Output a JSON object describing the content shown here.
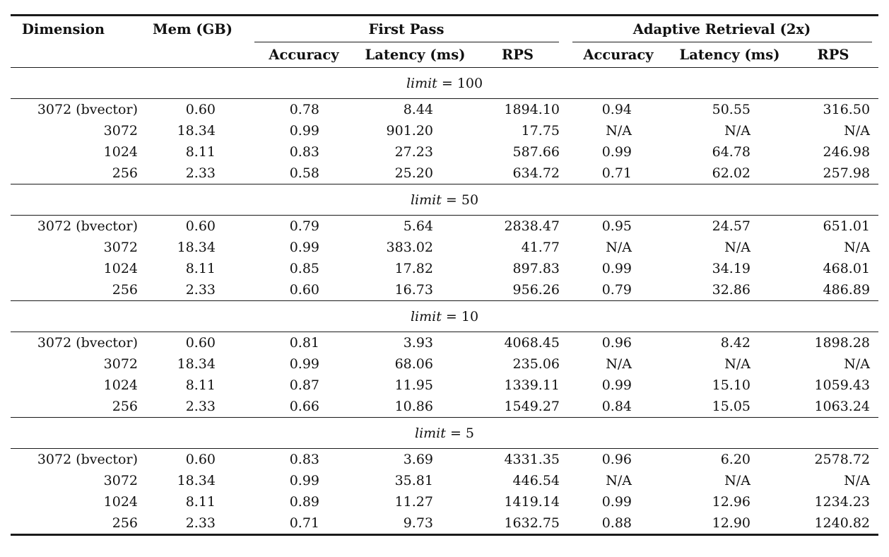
{
  "page": {
    "background": "#ffffff",
    "text_color": "#111111",
    "rule_color": "#1a1a1a"
  },
  "table": {
    "headers": {
      "dimension": "Dimension",
      "mem": "Mem (GB)",
      "first_pass": "First Pass",
      "adaptive": "Adaptive Retrieval (2x)",
      "sub_headers": [
        "Accuracy",
        "Latency (ms)",
        "RPS",
        "Accuracy",
        "Latency (ms)",
        "RPS"
      ]
    },
    "section_label_separator": " = ",
    "sections": [
      {
        "limit_var": "limit",
        "limit_value": "100",
        "rows": [
          [
            "3072 (bvector)",
            "0.60",
            "0.78",
            "8.44",
            "1894.10",
            "0.94",
            "50.55",
            "316.50"
          ],
          [
            "3072",
            "18.34",
            "0.99",
            "901.20",
            "17.75",
            "N/A",
            "N/A",
            "N/A"
          ],
          [
            "1024",
            "8.11",
            "0.83",
            "27.23",
            "587.66",
            "0.99",
            "64.78",
            "246.98"
          ],
          [
            "256",
            "2.33",
            "0.58",
            "25.20",
            "634.72",
            "0.71",
            "62.02",
            "257.98"
          ]
        ]
      },
      {
        "limit_var": "limit",
        "limit_value": "50",
        "rows": [
          [
            "3072 (bvector)",
            "0.60",
            "0.79",
            "5.64",
            "2838.47",
            "0.95",
            "24.57",
            "651.01"
          ],
          [
            "3072",
            "18.34",
            "0.99",
            "383.02",
            "41.77",
            "N/A",
            "N/A",
            "N/A"
          ],
          [
            "1024",
            "8.11",
            "0.85",
            "17.82",
            "897.83",
            "0.99",
            "34.19",
            "468.01"
          ],
          [
            "256",
            "2.33",
            "0.60",
            "16.73",
            "956.26",
            "0.79",
            "32.86",
            "486.89"
          ]
        ]
      },
      {
        "limit_var": "limit",
        "limit_value": "10",
        "rows": [
          [
            "3072 (bvector)",
            "0.60",
            "0.81",
            "3.93",
            "4068.45",
            "0.96",
            "8.42",
            "1898.28"
          ],
          [
            "3072",
            "18.34",
            "0.99",
            "68.06",
            "235.06",
            "N/A",
            "N/A",
            "N/A"
          ],
          [
            "1024",
            "8.11",
            "0.87",
            "11.95",
            "1339.11",
            "0.99",
            "15.10",
            "1059.43"
          ],
          [
            "256",
            "2.33",
            "0.66",
            "10.86",
            "1549.27",
            "0.84",
            "15.05",
            "1063.24"
          ]
        ]
      },
      {
        "limit_var": "limit",
        "limit_value": "5",
        "rows": [
          [
            "3072 (bvector)",
            "0.60",
            "0.83",
            "3.69",
            "4331.35",
            "0.96",
            "6.20",
            "2578.72"
          ],
          [
            "3072",
            "18.34",
            "0.99",
            "35.81",
            "446.54",
            "N/A",
            "N/A",
            "N/A"
          ],
          [
            "1024",
            "8.11",
            "0.89",
            "11.27",
            "1419.14",
            "0.99",
            "12.96",
            "1234.23"
          ],
          [
            "256",
            "2.33",
            "0.71",
            "9.73",
            "1632.75",
            "0.88",
            "12.90",
            "1240.82"
          ]
        ]
      }
    ],
    "cell_keys": [
      "dimension",
      "mem",
      "fp-accuracy",
      "fp-latency",
      "fp-rps",
      "ar-accuracy",
      "ar-latency",
      "ar-rps"
    ]
  }
}
